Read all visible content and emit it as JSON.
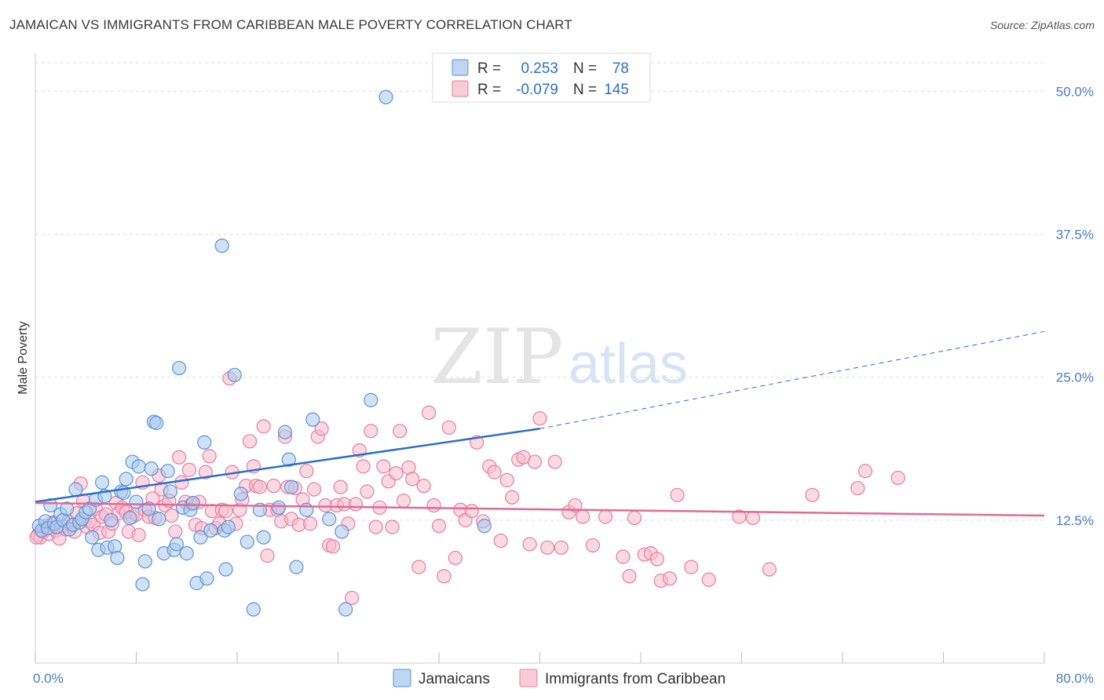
{
  "title": "JAMAICAN VS IMMIGRANTS FROM CARIBBEAN MALE POVERTY CORRELATION CHART",
  "source": "Source: ZipAtlas.com",
  "watermark": {
    "zip": "ZIP",
    "atlas": "atlas"
  },
  "colors": {
    "blue": "#a9c8ee",
    "blue_stroke": "#5b93d6",
    "blue_line": "#2a6fcb",
    "pink": "#f7b9cc",
    "pink_stroke": "#e87ea1",
    "pink_line": "#e06b95",
    "tick_text": "#4a7cc8",
    "grid": "#dddddd"
  },
  "legend_top": {
    "rows": [
      {
        "r_label": "R =",
        "r_value": "0.253",
        "n_label": "N =",
        "n_value": "78"
      },
      {
        "r_label": "R =",
        "r_value": "-0.079",
        "n_label": "N =",
        "n_value": "145"
      }
    ]
  },
  "chart_data": {
    "type": "scatter",
    "title": "JAMAICAN VS IMMIGRANTS FROM CARIBBEAN MALE POVERTY CORRELATION CHART",
    "xlabel": "",
    "ylabel": "Male Poverty",
    "xlim": [
      0,
      80
    ],
    "ylim": [
      0,
      52.5
    ],
    "x_tick_labels": [
      "0.0%",
      "80.0%"
    ],
    "y_ticks": [
      12.5,
      25.0,
      37.5,
      50.0
    ],
    "y_tick_labels": [
      "12.5%",
      "25.0%",
      "37.5%",
      "50.0%"
    ],
    "grid": "horizontal dashed",
    "legend_position": "bottom-center",
    "series": [
      {
        "name": "Jamaicans",
        "r": 0.253,
        "n": 78,
        "trend": {
          "x0": 0,
          "y0": 14.1,
          "x1": 40,
          "y1": 20.5,
          "dashed_to_x": 80,
          "dashed_to_y": 29.0
        },
        "points": [
          [
            0.3,
            12.0
          ],
          [
            0.5,
            11.6
          ],
          [
            0.8,
            12.4
          ],
          [
            1.0,
            11.8
          ],
          [
            1.2,
            13.8
          ],
          [
            1.5,
            12.2
          ],
          [
            1.7,
            11.9
          ],
          [
            2.0,
            13.0
          ],
          [
            2.2,
            12.5
          ],
          [
            2.5,
            13.5
          ],
          [
            2.7,
            11.7
          ],
          [
            3.0,
            12.1
          ],
          [
            3.2,
            15.2
          ],
          [
            3.5,
            12.3
          ],
          [
            3.7,
            12.6
          ],
          [
            4.0,
            13.2
          ],
          [
            4.3,
            13.5
          ],
          [
            4.5,
            11.0
          ],
          [
            4.8,
            14.3
          ],
          [
            5.0,
            9.9
          ],
          [
            5.3,
            15.8
          ],
          [
            5.5,
            14.6
          ],
          [
            5.7,
            10.1
          ],
          [
            6.0,
            12.5
          ],
          [
            6.3,
            10.2
          ],
          [
            6.5,
            9.2
          ],
          [
            6.8,
            15.0
          ],
          [
            7.0,
            14.9
          ],
          [
            7.2,
            16.1
          ],
          [
            7.5,
            12.7
          ],
          [
            7.7,
            17.6
          ],
          [
            8.0,
            14.1
          ],
          [
            8.2,
            17.2
          ],
          [
            8.5,
            6.9
          ],
          [
            8.7,
            8.9
          ],
          [
            9.0,
            13.5
          ],
          [
            9.2,
            17.0
          ],
          [
            9.4,
            21.1
          ],
          [
            9.6,
            21.0
          ],
          [
            9.8,
            12.6
          ],
          [
            10.2,
            9.6
          ],
          [
            10.5,
            16.8
          ],
          [
            10.7,
            15.0
          ],
          [
            11.0,
            9.9
          ],
          [
            11.2,
            10.4
          ],
          [
            11.4,
            25.8
          ],
          [
            11.7,
            13.6
          ],
          [
            12.0,
            9.6
          ],
          [
            12.3,
            13.4
          ],
          [
            12.5,
            14.0
          ],
          [
            12.8,
            7.0
          ],
          [
            13.1,
            11.0
          ],
          [
            13.4,
            19.3
          ],
          [
            13.6,
            7.4
          ],
          [
            13.9,
            11.6
          ],
          [
            14.8,
            36.5
          ],
          [
            15.0,
            11.6
          ],
          [
            15.1,
            8.2
          ],
          [
            15.3,
            11.9
          ],
          [
            15.8,
            25.2
          ],
          [
            16.3,
            14.8
          ],
          [
            16.8,
            10.6
          ],
          [
            17.3,
            4.7
          ],
          [
            17.8,
            13.4
          ],
          [
            18.1,
            11.0
          ],
          [
            19.3,
            13.6
          ],
          [
            19.8,
            20.2
          ],
          [
            20.1,
            17.8
          ],
          [
            20.3,
            15.4
          ],
          [
            20.7,
            8.4
          ],
          [
            21.5,
            13.4
          ],
          [
            22.0,
            21.3
          ],
          [
            23.3,
            12.6
          ],
          [
            24.3,
            11.5
          ],
          [
            24.6,
            4.7
          ],
          [
            26.6,
            23.0
          ],
          [
            27.8,
            49.5
          ],
          [
            35.6,
            12.0
          ]
        ]
      },
      {
        "name": "Immigrants from Caribbean",
        "r": -0.079,
        "n": 145,
        "trend": {
          "x0": 0,
          "y0": 14.0,
          "x1": 80,
          "y1": 12.9
        },
        "points": [
          [
            0.2,
            11.2
          ],
          [
            0.4,
            11.0
          ],
          [
            0.6,
            11.5
          ],
          [
            0.9,
            12.0
          ],
          [
            1.1,
            11.3
          ],
          [
            1.4,
            12.3
          ],
          [
            1.6,
            11.6
          ],
          [
            1.9,
            10.9
          ],
          [
            2.1,
            12.0
          ],
          [
            2.4,
            11.7
          ],
          [
            2.6,
            12.4
          ],
          [
            2.9,
            12.0
          ],
          [
            3.1,
            11.5
          ],
          [
            3.3,
            13.1
          ],
          [
            3.6,
            15.7
          ],
          [
            3.8,
            14.2
          ],
          [
            4.1,
            11.9
          ],
          [
            4.3,
            12.4
          ],
          [
            4.6,
            12.1
          ],
          [
            4.8,
            13.5
          ],
          [
            5.1,
            11.4
          ],
          [
            5.3,
            12.8
          ],
          [
            5.6,
            13.0
          ],
          [
            5.8,
            11.5
          ],
          [
            6.1,
            12.2
          ],
          [
            6.4,
            14.0
          ],
          [
            6.6,
            13.1
          ],
          [
            6.9,
            13.6
          ],
          [
            7.2,
            13.2
          ],
          [
            7.4,
            11.5
          ],
          [
            7.7,
            12.8
          ],
          [
            8.0,
            13.0
          ],
          [
            8.2,
            11.2
          ],
          [
            8.5,
            15.8
          ],
          [
            8.7,
            13.4
          ],
          [
            9.0,
            12.8
          ],
          [
            9.3,
            14.4
          ],
          [
            9.5,
            12.7
          ],
          [
            9.8,
            16.4
          ],
          [
            10.0,
            15.2
          ],
          [
            10.3,
            13.8
          ],
          [
            10.6,
            14.2
          ],
          [
            10.8,
            12.9
          ],
          [
            11.1,
            11.5
          ],
          [
            11.4,
            18.0
          ],
          [
            11.6,
            15.8
          ],
          [
            11.9,
            14.1
          ],
          [
            12.2,
            16.9
          ],
          [
            12.4,
            13.9
          ],
          [
            12.7,
            12.1
          ],
          [
            13.0,
            14.1
          ],
          [
            13.2,
            11.8
          ],
          [
            13.5,
            16.7
          ],
          [
            13.8,
            18.1
          ],
          [
            14.0,
            13.3
          ],
          [
            14.3,
            11.8
          ],
          [
            14.6,
            12.2
          ],
          [
            14.8,
            13.4
          ],
          [
            15.1,
            13.3
          ],
          [
            15.4,
            24.9
          ],
          [
            15.6,
            16.7
          ],
          [
            15.9,
            12.2
          ],
          [
            16.2,
            13.4
          ],
          [
            16.4,
            14.3
          ],
          [
            16.7,
            15.5
          ],
          [
            17.0,
            19.4
          ],
          [
            17.3,
            17.2
          ],
          [
            17.5,
            15.5
          ],
          [
            17.8,
            15.4
          ],
          [
            18.1,
            20.7
          ],
          [
            18.4,
            9.4
          ],
          [
            18.6,
            13.4
          ],
          [
            18.9,
            15.5
          ],
          [
            19.2,
            13.4
          ],
          [
            19.5,
            12.4
          ],
          [
            19.8,
            19.8
          ],
          [
            20.0,
            15.4
          ],
          [
            20.3,
            12.6
          ],
          [
            20.6,
            15.3
          ],
          [
            20.9,
            12.1
          ],
          [
            21.2,
            14.3
          ],
          [
            21.5,
            16.8
          ],
          [
            21.8,
            12.2
          ],
          [
            22.1,
            15.2
          ],
          [
            22.4,
            19.8
          ],
          [
            22.7,
            20.5
          ],
          [
            23.0,
            13.8
          ],
          [
            23.3,
            10.3
          ],
          [
            23.6,
            10.2
          ],
          [
            23.9,
            13.8
          ],
          [
            24.2,
            15.4
          ],
          [
            24.5,
            13.9
          ],
          [
            24.8,
            12.2
          ],
          [
            25.1,
            5.7
          ],
          [
            25.4,
            13.9
          ],
          [
            25.7,
            18.6
          ],
          [
            26.0,
            17.2
          ],
          [
            26.3,
            15.0
          ],
          [
            26.6,
            20.3
          ],
          [
            27.0,
            11.9
          ],
          [
            27.3,
            13.6
          ],
          [
            27.6,
            17.2
          ],
          [
            28.0,
            15.9
          ],
          [
            28.3,
            11.9
          ],
          [
            28.6,
            16.6
          ],
          [
            28.9,
            20.3
          ],
          [
            29.2,
            14.2
          ],
          [
            29.6,
            17.1
          ],
          [
            29.9,
            16.1
          ],
          [
            30.4,
            8.4
          ],
          [
            30.8,
            15.5
          ],
          [
            31.2,
            21.9
          ],
          [
            31.6,
            13.8
          ],
          [
            32.0,
            12.0
          ],
          [
            32.4,
            7.6
          ],
          [
            32.8,
            20.6
          ],
          [
            33.3,
            9.2
          ],
          [
            33.7,
            13.4
          ],
          [
            34.1,
            12.5
          ],
          [
            34.6,
            13.3
          ],
          [
            35.0,
            19.3
          ],
          [
            35.5,
            12.4
          ],
          [
            36.0,
            17.2
          ],
          [
            36.4,
            16.7
          ],
          [
            36.9,
            10.7
          ],
          [
            37.4,
            16.0
          ],
          [
            37.8,
            14.5
          ],
          [
            38.3,
            17.8
          ],
          [
            38.7,
            18.0
          ],
          [
            39.2,
            10.4
          ],
          [
            39.6,
            17.6
          ],
          [
            40.0,
            21.4
          ],
          [
            40.6,
            10.1
          ],
          [
            41.2,
            17.6
          ],
          [
            41.7,
            10.1
          ],
          [
            42.3,
            13.2
          ],
          [
            42.8,
            13.8
          ],
          [
            43.4,
            12.8
          ],
          [
            44.2,
            10.3
          ],
          [
            45.2,
            12.8
          ],
          [
            46.6,
            9.3
          ],
          [
            47.1,
            7.6
          ],
          [
            47.5,
            12.7
          ],
          [
            48.3,
            9.5
          ],
          [
            48.8,
            9.6
          ],
          [
            49.3,
            9.1
          ],
          [
            49.6,
            7.2
          ],
          [
            50.3,
            7.4
          ],
          [
            50.9,
            14.7
          ],
          [
            52.0,
            8.4
          ]
        ]
      }
    ],
    "extra_points": {
      "Immigrants from Caribbean": [
        [
          53.4,
          7.3
        ],
        [
          55.8,
          12.8
        ],
        [
          56.9,
          12.7
        ],
        [
          58.2,
          8.2
        ],
        [
          61.6,
          14.7
        ],
        [
          65.2,
          15.3
        ],
        [
          65.8,
          16.8
        ],
        [
          68.4,
          16.2
        ],
        [
          0.1,
          11.0
        ]
      ]
    }
  },
  "bottom_legend": [
    {
      "label": "Jamaicans"
    },
    {
      "label": "Immigrants from Caribbean"
    }
  ]
}
